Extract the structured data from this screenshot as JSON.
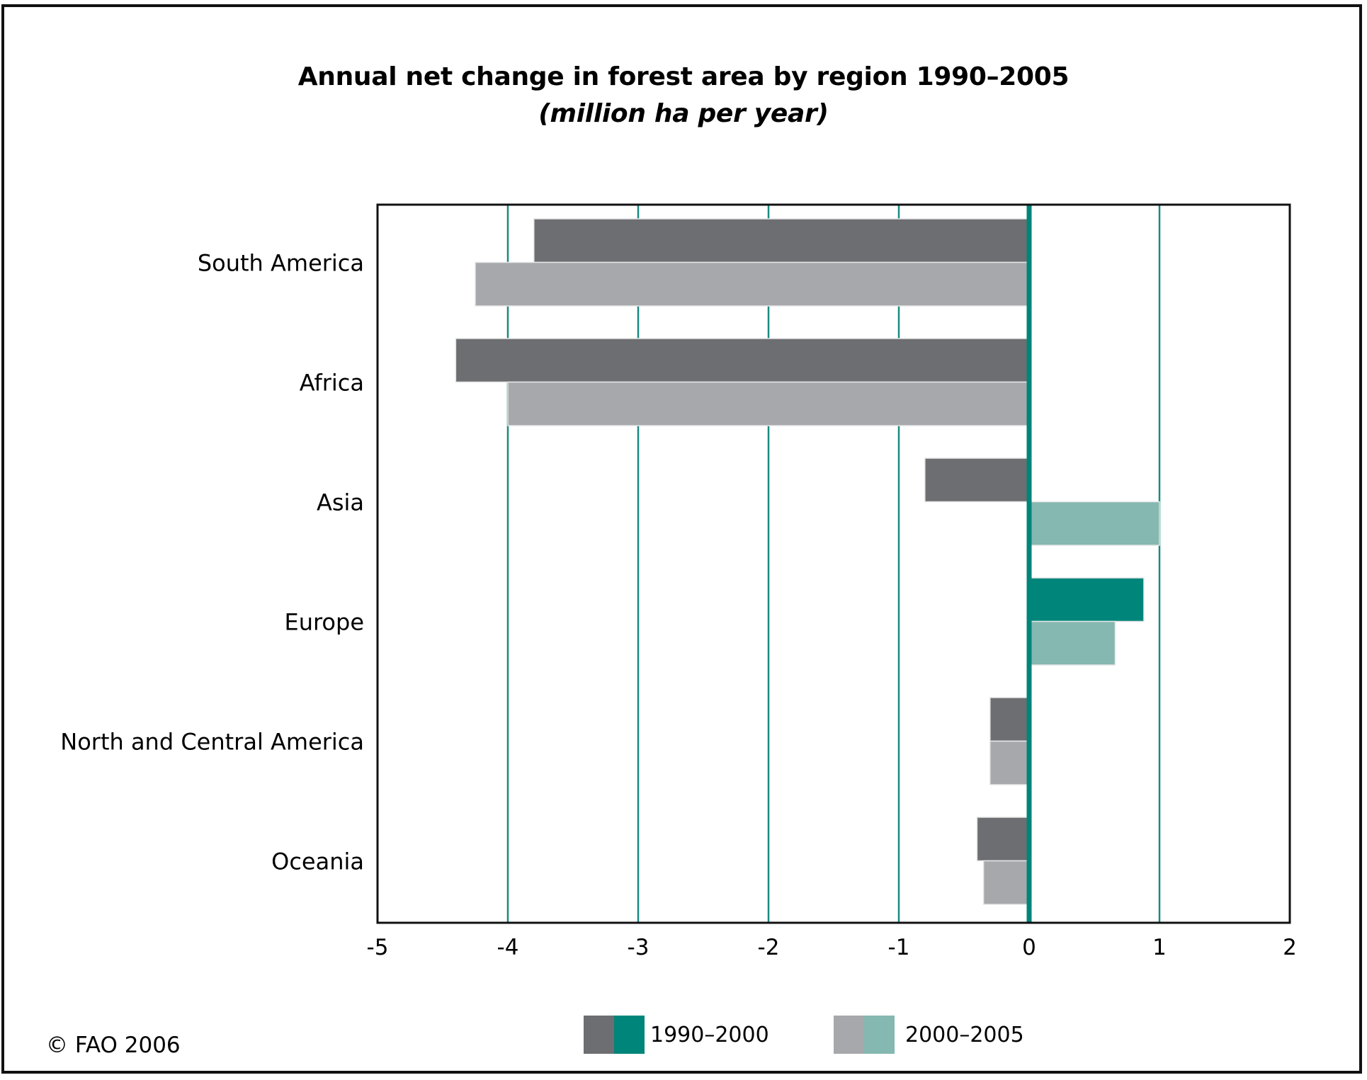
{
  "chart_data": {
    "type": "bar",
    "orientation": "horizontal",
    "title": "Annual net change in forest area by region 1990–2005",
    "subtitle": "(million ha per year)",
    "xlabel": "",
    "ylabel": "",
    "xlim": [
      -5,
      2
    ],
    "xticks": [
      -5,
      -4,
      -3,
      -2,
      -1,
      0,
      1,
      2
    ],
    "xtick_labels": [
      "-5",
      "-4",
      "-3",
      "-2",
      "-1",
      "0",
      "1",
      "2"
    ],
    "grid": "vertical",
    "categories": [
      "South America",
      "Africa",
      "Asia",
      "Europe",
      "North and Central America",
      "Oceania"
    ],
    "series": [
      {
        "name": "1990–2000",
        "values": [
          -3.8,
          -4.4,
          -0.8,
          0.88,
          -0.3,
          -0.4
        ],
        "color_negative": "#6d6e71",
        "color_positive": "#00857a"
      },
      {
        "name": "2000–2005",
        "values": [
          -4.25,
          -4.0,
          1.0,
          0.66,
          -0.3,
          -0.35
        ],
        "color_negative": "#a7a8ab",
        "color_positive": "#84b8b1"
      }
    ],
    "legend_position": "bottom-center",
    "colors": {
      "gridline": "#1a8a80",
      "zero_axis": "#00857a",
      "frame": "#111111"
    }
  },
  "legend": [
    {
      "label": "1990–2000",
      "colors": [
        "#6d6e71",
        "#00857a"
      ]
    },
    {
      "label": "2000–2005",
      "colors": [
        "#a7a8ab",
        "#84b8b1"
      ]
    }
  ],
  "footer": {
    "copyright": "© FAO 2006"
  }
}
